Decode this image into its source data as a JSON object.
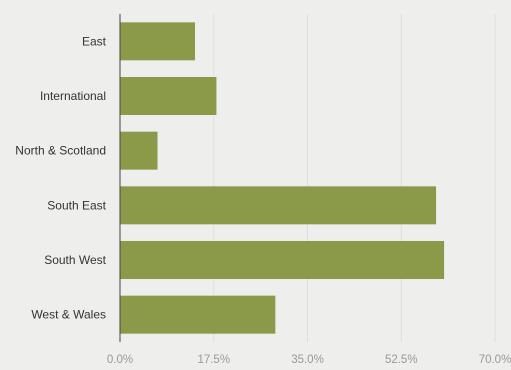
{
  "chart_data": {
    "type": "bar",
    "orientation": "horizontal",
    "title": "",
    "xlabel": "",
    "ylabel": "",
    "categories": [
      "East",
      "International",
      "North & Scotland",
      "South East",
      "South West",
      "West & Wales"
    ],
    "values": [
      14.0,
      18.0,
      7.0,
      59.0,
      60.5,
      29.0
    ],
    "xlim": [
      0,
      70
    ],
    "xticks": [
      0,
      17.5,
      35,
      52.5,
      70
    ],
    "xtick_labels": [
      "0.0%",
      "17.5%",
      "35.0%",
      "52.5%",
      "70.0%"
    ],
    "grid": "vertical",
    "legend": "none",
    "bar_color": "#8a9a48",
    "axis_color": "#444444",
    "grid_color": "#dedede",
    "background_color": "#eeeeed"
  }
}
